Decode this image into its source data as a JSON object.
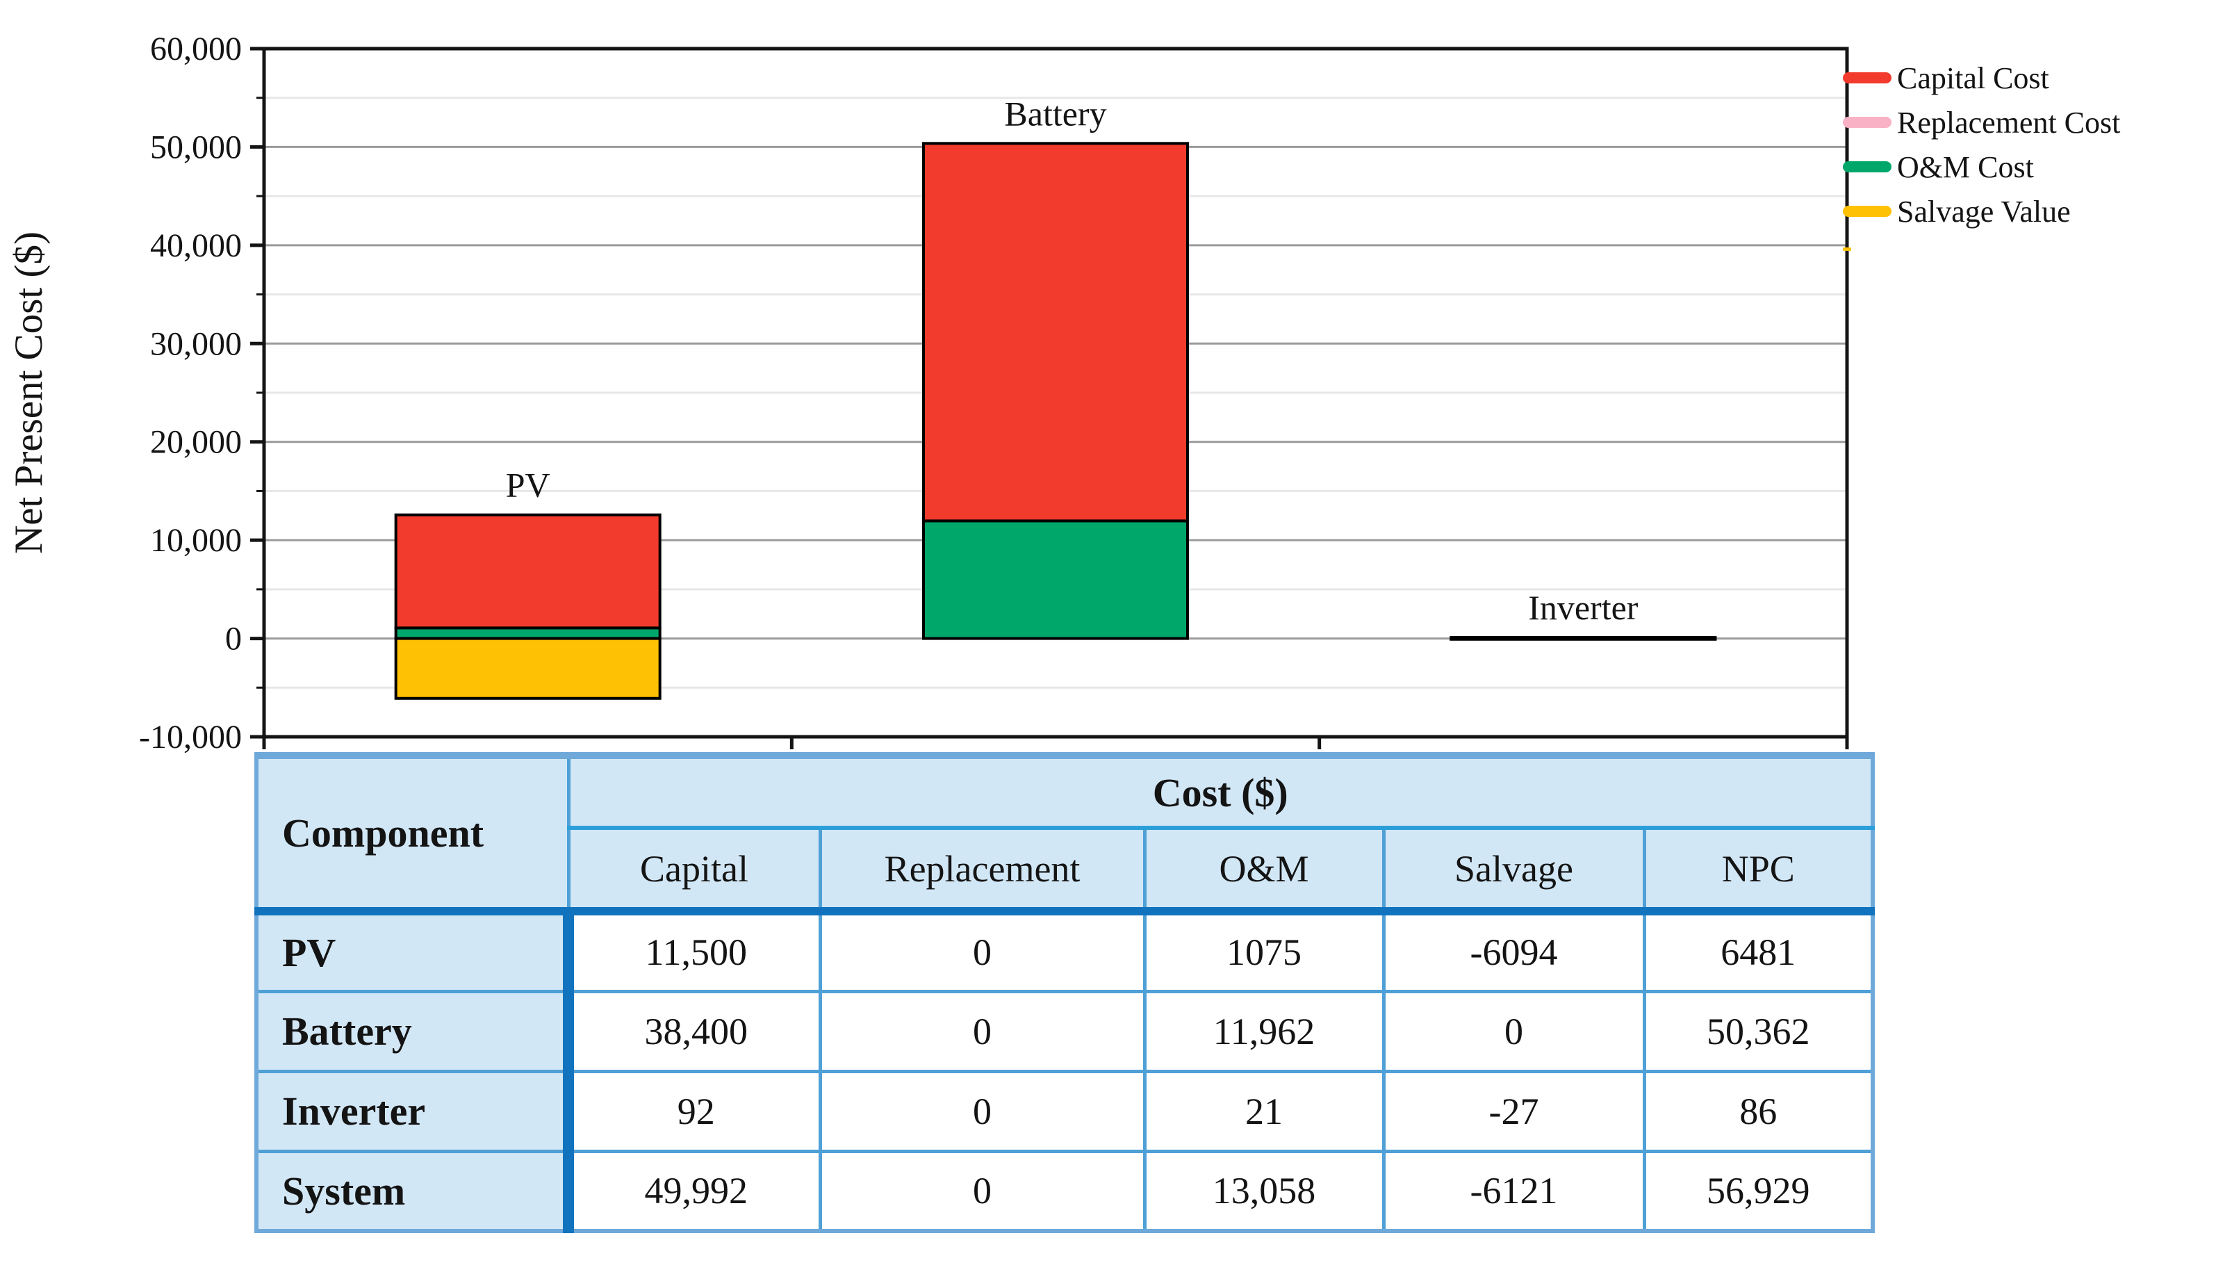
{
  "chart_data": {
    "type": "bar",
    "variant": "stacked-vertical",
    "title": "",
    "ylabel": "Net Present Cost ($)",
    "xlabel": "",
    "ylim": [
      -10000,
      60000
    ],
    "y_major_step": 10000,
    "y_minor_step": 5000,
    "grid": "on",
    "legend_position": "top-right-outside",
    "y_axis": {
      "title": "Net Present Cost ($)",
      "min": -10000,
      "max": 60000,
      "tick_labels": [
        "60,000",
        "50,000",
        "40,000",
        "30,000",
        "20,000",
        "10,000",
        "0",
        "-10,000"
      ]
    },
    "categories": [
      "PV",
      "Battery",
      "Inverter"
    ],
    "series": [
      {
        "name": "Capital Cost",
        "color": "#F23B2C",
        "values": [
          11500,
          38400,
          92
        ]
      },
      {
        "name": "Replacement Cost",
        "color": "#F9B1C6",
        "values": [
          0,
          0,
          0
        ]
      },
      {
        "name": "O&M Cost",
        "color": "#00A76B",
        "values": [
          1075,
          11962,
          21
        ]
      },
      {
        "name": "Salvage Value",
        "color": "#FFC103",
        "values": [
          -6094,
          0,
          -27
        ]
      }
    ],
    "stack_draw_order": [
      "O&M Cost",
      "Capital Cost",
      "Replacement Cost",
      "Salvage Value"
    ],
    "legend": [
      {
        "label": "Capital Cost",
        "color": "#F23B2C"
      },
      {
        "label": "Replacement Cost",
        "color": "#F9B1C6"
      },
      {
        "label": "O&M Cost",
        "color": "#00A76B"
      },
      {
        "label": "Salvage Value",
        "color": "#FFC103"
      }
    ],
    "colors": {
      "axis_frame": "#141414",
      "major_gridline": "#9b9b9b",
      "minor_gridline": "#e7e7e7",
      "bar_outline": "#000000"
    }
  },
  "table": {
    "corner_header": "Component",
    "group_header": "Cost ($)",
    "columns": [
      "Capital",
      "Replacement",
      "O&M",
      "Salvage",
      "NPC"
    ],
    "rows": [
      {
        "label": "PV",
        "values": [
          "11,500",
          "0",
          "1075",
          "-6094",
          "6481"
        ]
      },
      {
        "label": "Battery",
        "values": [
          "38,400",
          "0",
          "11,962",
          "0",
          "50,362"
        ]
      },
      {
        "label": "Inverter",
        "values": [
          "92",
          "0",
          "21",
          "-27",
          "86"
        ]
      },
      {
        "label": "System",
        "values": [
          "49,992",
          "0",
          "13,058",
          "-6121",
          "56,929"
        ]
      }
    ],
    "style_colors": {
      "header_bg": "#D2E7F6",
      "outer_border": "#6FA9DA",
      "inner_border": "#4FA0D6",
      "group_underline": "#2B9FD9",
      "heavy_rule": "#1173BE"
    }
  }
}
